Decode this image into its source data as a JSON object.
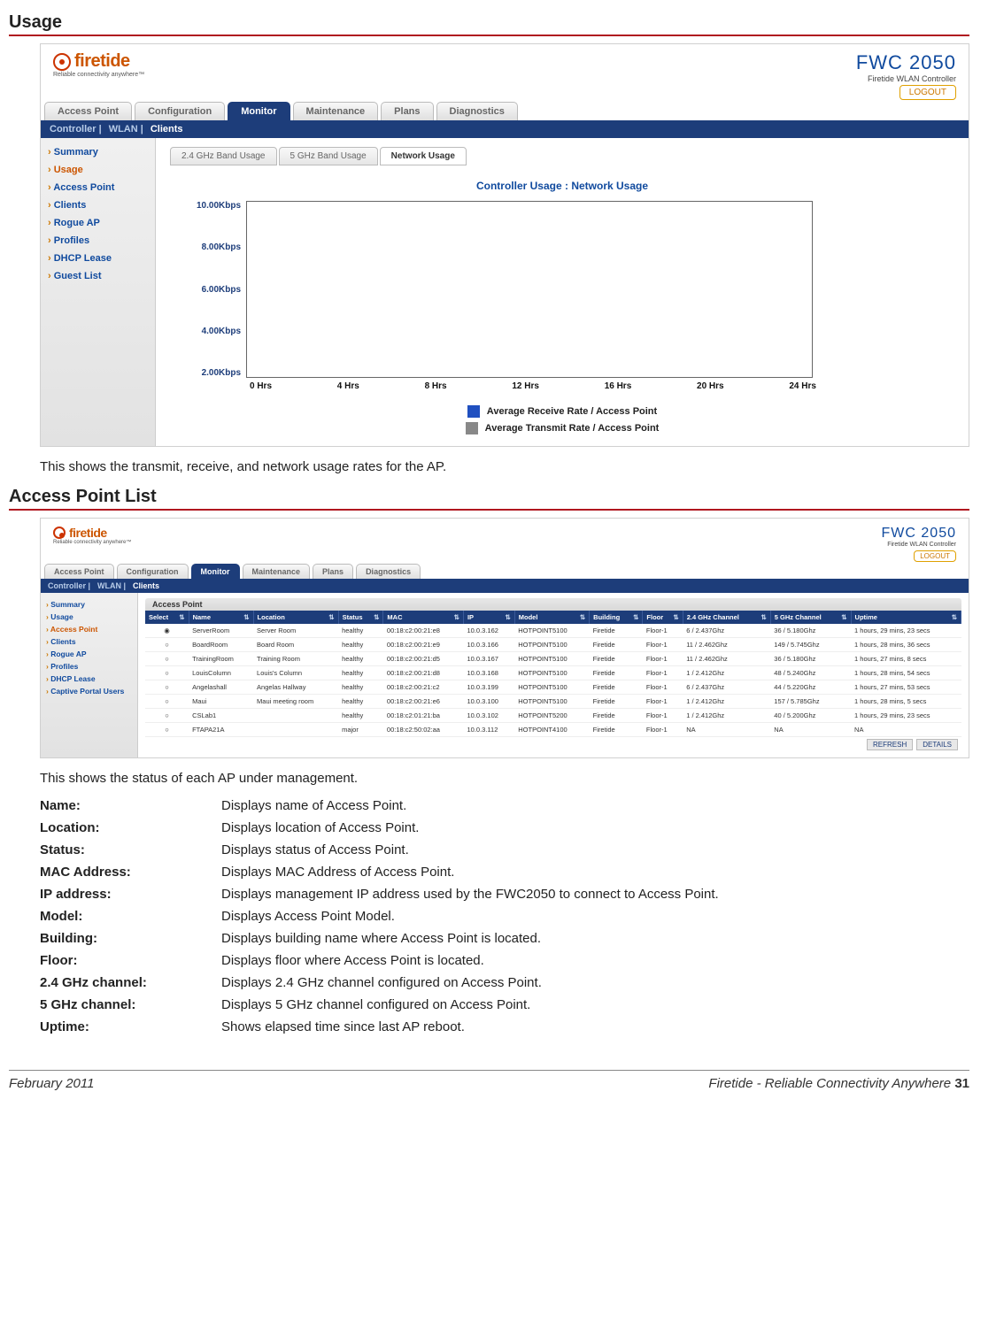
{
  "page": {
    "section1_title": "Usage",
    "section2_title": "Access Point List",
    "caption1": "This shows the transmit, receive, and network usage rates for the AP.",
    "caption2": "This shows the status of each AP under management.",
    "footer_left": "February 2011",
    "footer_right": "Firetide - Reliable Connectivity Anywhere",
    "footer_page": "31"
  },
  "brand": {
    "logo_text": "firetide",
    "logo_tag": "Reliable connectivity anywhere™",
    "product": "FWC 2050",
    "product_sub": "Firetide WLAN Controller",
    "logout": "LOGOUT"
  },
  "main_tabs": [
    "Access Point",
    "Configuration",
    "Monitor",
    "Maintenance",
    "Plans",
    "Diagnostics"
  ],
  "main_tab_active": "Monitor",
  "sub_tabs": {
    "items": [
      "Controller",
      "WLAN",
      "Clients"
    ],
    "active": "Clients"
  },
  "sidebar1": [
    {
      "label": "Summary",
      "hot": false
    },
    {
      "label": "Usage",
      "hot": true
    },
    {
      "label": "Access Point",
      "hot": false
    },
    {
      "label": "Clients",
      "hot": false
    },
    {
      "label": "Rogue AP",
      "hot": false
    },
    {
      "label": "Profiles",
      "hot": false
    },
    {
      "label": "DHCP Lease",
      "hot": false
    },
    {
      "label": "Guest List",
      "hot": false
    }
  ],
  "sidebar2": [
    {
      "label": "Summary",
      "hot": false
    },
    {
      "label": "Usage",
      "hot": false
    },
    {
      "label": "Access Point",
      "hot": true
    },
    {
      "label": "Clients",
      "hot": false
    },
    {
      "label": "Rogue AP",
      "hot": false
    },
    {
      "label": "Profiles",
      "hot": false
    },
    {
      "label": "DHCP Lease",
      "hot": false
    },
    {
      "label": "Captive Portal Users",
      "hot": false
    }
  ],
  "usage_tabs": [
    "2.4 GHz Band Usage",
    "5 GHz Band Usage",
    "Network Usage"
  ],
  "usage_tab_active": "Network Usage",
  "chart": {
    "title": "Controller Usage : Network Usage",
    "y_ticks": [
      "10.00Kbps",
      "8.00Kbps",
      "6.00Kbps",
      "4.00Kbps",
      "2.00Kbps"
    ],
    "x_ticks": [
      "0 Hrs",
      "4 Hrs",
      "8 Hrs",
      "12 Hrs",
      "16 Hrs",
      "20 Hrs",
      "24 Hrs"
    ],
    "legend": [
      {
        "label": "Average Receive Rate / Access Point",
        "color": "#2050c0"
      },
      {
        "label": "Average Transmit Rate / Access Point",
        "color": "#888888"
      }
    ],
    "border_color": "#555555",
    "ylabel_color": "#1d3d7a",
    "xlabel_color": "#111111"
  },
  "ap_table": {
    "panel_title": "Access Point",
    "columns": [
      "Select",
      "Name",
      "Location",
      "Status",
      "MAC",
      "IP",
      "Model",
      "Building",
      "Floor",
      "2.4 GHz Channel",
      "5 GHz Channel",
      "Uptime"
    ],
    "rows": [
      {
        "sel": true,
        "name": "ServerRoom",
        "loc": "Server Room",
        "status": "healthy",
        "mac": "00:18:c2:00:21:e8",
        "ip": "10.0.3.162",
        "model": "HOTPOINT5100",
        "bldg": "Firetide",
        "floor": "Floor-1",
        "ch24": "6 / 2.437Ghz",
        "ch5": "36 / 5.180Ghz",
        "up": "1 hours, 29 mins, 23 secs"
      },
      {
        "sel": false,
        "name": "BoardRoom",
        "loc": "Board Room",
        "status": "healthy",
        "mac": "00:18:c2:00:21:e9",
        "ip": "10.0.3.166",
        "model": "HOTPOINT5100",
        "bldg": "Firetide",
        "floor": "Floor-1",
        "ch24": "11 / 2.462Ghz",
        "ch5": "149 / 5.745Ghz",
        "up": "1 hours, 28 mins, 36 secs"
      },
      {
        "sel": false,
        "name": "TrainingRoom",
        "loc": "Training Room",
        "status": "healthy",
        "mac": "00:18:c2:00:21:d5",
        "ip": "10.0.3.167",
        "model": "HOTPOINT5100",
        "bldg": "Firetide",
        "floor": "Floor-1",
        "ch24": "11 / 2.462Ghz",
        "ch5": "36 / 5.180Ghz",
        "up": "1 hours, 27 mins, 8 secs"
      },
      {
        "sel": false,
        "name": "LouisColumn",
        "loc": "Louis's Column",
        "status": "healthy",
        "mac": "00:18:c2:00:21:d8",
        "ip": "10.0.3.168",
        "model": "HOTPOINT5100",
        "bldg": "Firetide",
        "floor": "Floor-1",
        "ch24": "1 / 2.412Ghz",
        "ch5": "48 / 5.240Ghz",
        "up": "1 hours, 28 mins, 54 secs"
      },
      {
        "sel": false,
        "name": "Angelashall",
        "loc": "Angelas Hallway",
        "status": "healthy",
        "mac": "00:18:c2:00:21:c2",
        "ip": "10.0.3.199",
        "model": "HOTPOINT5100",
        "bldg": "Firetide",
        "floor": "Floor-1",
        "ch24": "6 / 2.437Ghz",
        "ch5": "44 / 5.220Ghz",
        "up": "1 hours, 27 mins, 53 secs"
      },
      {
        "sel": false,
        "name": "Maui",
        "loc": "Maui meeting room",
        "status": "healthy",
        "mac": "00:18:c2:00:21:e6",
        "ip": "10.0.3.100",
        "model": "HOTPOINT5100",
        "bldg": "Firetide",
        "floor": "Floor-1",
        "ch24": "1 / 2.412Ghz",
        "ch5": "157 / 5.785Ghz",
        "up": "1 hours, 28 mins, 5 secs"
      },
      {
        "sel": false,
        "name": "CSLab1",
        "loc": "",
        "status": "healthy",
        "mac": "00:18:c2:01:21:ba",
        "ip": "10.0.3.102",
        "model": "HOTPOINT5200",
        "bldg": "Firetide",
        "floor": "Floor-1",
        "ch24": "1 / 2.412Ghz",
        "ch5": "40 / 5.200Ghz",
        "up": "1 hours, 29 mins, 23 secs"
      },
      {
        "sel": false,
        "name": "FTAPA21A",
        "loc": "",
        "status": "major",
        "mac": "00:18:c2:50:02:aa",
        "ip": "10.0.3.112",
        "model": "HOTPOINT4100",
        "bldg": "Firetide",
        "floor": "Floor-1",
        "ch24": "NA",
        "ch5": "NA",
        "up": "NA"
      }
    ],
    "buttons": [
      "REFRESH",
      "DETAILS"
    ]
  },
  "definitions": [
    {
      "term": "Name:",
      "desc": "Displays name of Access Point."
    },
    {
      "term": "Location:",
      "desc": "Displays location of Access Point."
    },
    {
      "term": "Status:",
      "desc": "Displays status of Access Point."
    },
    {
      "term": "MAC Address:",
      "desc": "Displays MAC Address of Access Point."
    },
    {
      "term": "IP address:",
      "desc": "Displays management IP address used by the FWC2050 to connect to Access Point."
    },
    {
      "term": "Model:",
      "desc": "Displays Access Point Model."
    },
    {
      "term": "Building:",
      "desc": "Displays building name where Access Point is located."
    },
    {
      "term": "Floor:",
      "desc": "Displays floor where Access Point is located."
    },
    {
      "term": "2.4 GHz channel:",
      "desc": "Displays 2.4 GHz channel configured on Access Point."
    },
    {
      "term": "5 GHz channel:",
      "desc": "Displays 5 GHz  channel configured on Access Point."
    },
    {
      "term": "Uptime:",
      "desc": "Shows elapsed time since last AP reboot."
    }
  ],
  "colors": {
    "accent_red": "#b0171f",
    "brand_orange": "#cc5500",
    "nav_blue": "#1d3d7a",
    "link_blue": "#104a9e"
  }
}
